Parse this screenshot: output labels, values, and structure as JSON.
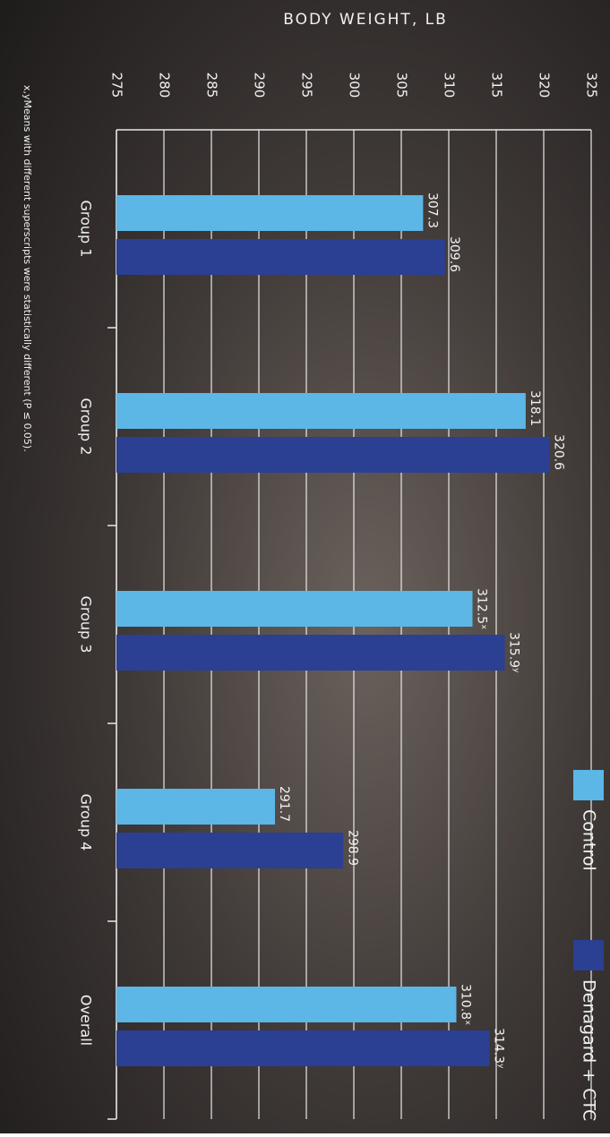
{
  "chart_data": {
    "type": "bar",
    "orientation": "horizontal",
    "title": "BODY WEIGHT, LB",
    "categories": [
      "Group 1",
      "Group 2",
      "Group 3",
      "Group 4",
      "Overall"
    ],
    "series": [
      {
        "name": "Control",
        "color": "#5cb6e6",
        "values": [
          307.3,
          318.1,
          312.5,
          291.7,
          310.8
        ],
        "value_labels": [
          "307.3",
          "318.1",
          "312.5ˣ",
          "291.7",
          "310.8ˣ"
        ]
      },
      {
        "name": "Denagard + CTC",
        "color": "#2b3f93",
        "values": [
          309.6,
          320.6,
          315.9,
          298.9,
          314.3
        ],
        "value_labels": [
          "309.6",
          "320.6",
          "315.9ʸ",
          "298.9",
          "314.3ʸ"
        ]
      }
    ],
    "xlim": [
      275,
      325
    ],
    "xticks": [
      275,
      280,
      285,
      290,
      295,
      300,
      305,
      310,
      315,
      320,
      325
    ],
    "grid": true,
    "footnote": "x,yMeans with different superscripts were statistically different (P ≤ 0.05)."
  }
}
